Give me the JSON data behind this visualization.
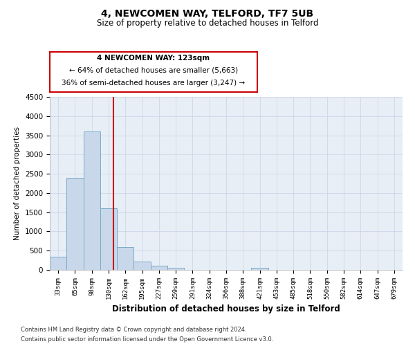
{
  "title": "4, NEWCOMEN WAY, TELFORD, TF7 5UB",
  "subtitle": "Size of property relative to detached houses in Telford",
  "xlabel": "Distribution of detached houses by size in Telford",
  "ylabel": "Number of detached properties",
  "categories": [
    "33sqm",
    "65sqm",
    "98sqm",
    "130sqm",
    "162sqm",
    "195sqm",
    "227sqm",
    "259sqm",
    "291sqm",
    "324sqm",
    "356sqm",
    "388sqm",
    "421sqm",
    "453sqm",
    "485sqm",
    "518sqm",
    "550sqm",
    "582sqm",
    "614sqm",
    "647sqm",
    "679sqm"
  ],
  "values": [
    350,
    2400,
    3600,
    1600,
    600,
    220,
    100,
    55,
    0,
    0,
    0,
    0,
    55,
    0,
    0,
    0,
    0,
    0,
    0,
    0,
    0
  ],
  "bar_color": "#c8d8ea",
  "bar_edge_color": "#7aaac8",
  "vline_color": "#cc0000",
  "annotation_title": "4 NEWCOMEN WAY: 123sqm",
  "annotation_line1": "← 64% of detached houses are smaller (5,663)",
  "annotation_line2": "36% of semi-detached houses are larger (3,247) →",
  "annotation_box_color": "#cc0000",
  "ylim": [
    0,
    4500
  ],
  "yticks": [
    0,
    500,
    1000,
    1500,
    2000,
    2500,
    3000,
    3500,
    4000,
    4500
  ],
  "footer_line1": "Contains HM Land Registry data © Crown copyright and database right 2024.",
  "footer_line2": "Contains public sector information licensed under the Open Government Licence v3.0.",
  "grid_color": "#ccd8e8",
  "background_color": "#e8eef6"
}
